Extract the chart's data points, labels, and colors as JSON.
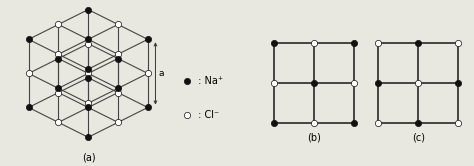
{
  "bg_color": "#e8e8e0",
  "line_color": "#444444",
  "na_color": "#111111",
  "cl_color": "#ffffff",
  "na_edge": "#111111",
  "cl_edge": "#111111",
  "na_ms": 4.5,
  "cl_ms": 4.5,
  "label_a": "(a)",
  "label_b": "(b)",
  "label_c": "(c)",
  "legend_na": " : Na⁺",
  "legend_cl": " : Cl⁻",
  "dim_label": "a",
  "lw_3d": 0.8,
  "lw_2d": 1.4,
  "title_fontsize": 7,
  "legend_fontsize": 7,
  "arrow_color": "#333333"
}
